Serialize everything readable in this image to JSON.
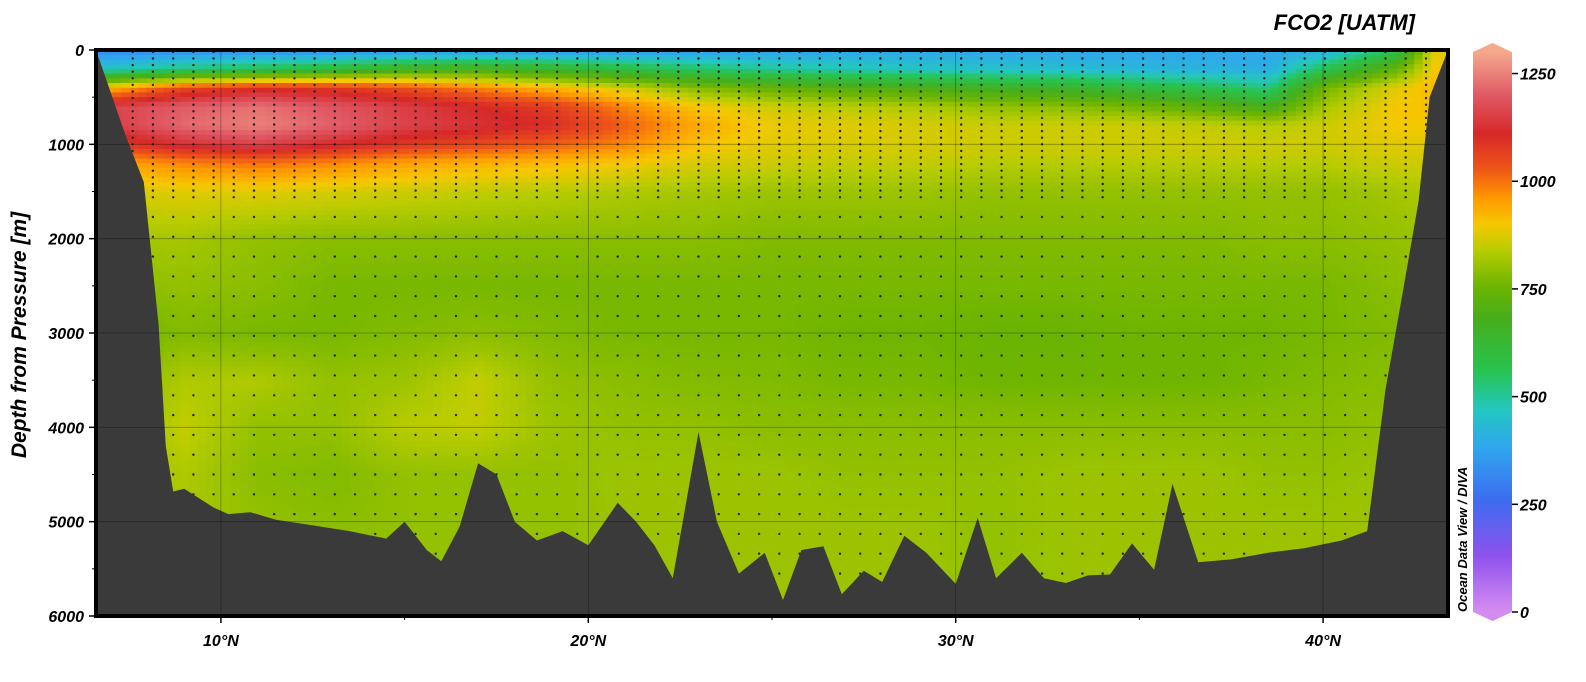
{
  "chart_data": {
    "type": "heatmap",
    "title": "FCO2 [UATM]",
    "ylabel": "Depth from Pressure [m]",
    "xlabel": "",
    "credit": "Ocean Data View / DIVA",
    "xlim": [
      6.6,
      43.4
    ],
    "ylim": [
      6000,
      0
    ],
    "x_ticks": [
      10,
      20,
      30,
      40
    ],
    "x_tick_labels": [
      "10°N",
      "20°N",
      "30°N",
      "40°N"
    ],
    "y_ticks": [
      0,
      1000,
      2000,
      3000,
      4000,
      5000,
      6000
    ],
    "y_tick_labels": [
      "0",
      "1000",
      "2000",
      "3000",
      "4000",
      "5000",
      "6000"
    ],
    "grid": true,
    "colorbar": {
      "range": [
        0,
        1300
      ],
      "ticks": [
        0,
        250,
        500,
        750,
        1000,
        1250
      ],
      "tick_labels": [
        "0",
        "250",
        "500",
        "750",
        "1000",
        "1250"
      ],
      "stops": [
        {
          "value": 0,
          "color": "#d58cf0"
        },
        {
          "value": 130,
          "color": "#8f52ee"
        },
        {
          "value": 260,
          "color": "#3c6cf0"
        },
        {
          "value": 380,
          "color": "#2fa6ee"
        },
        {
          "value": 470,
          "color": "#23c7c0"
        },
        {
          "value": 560,
          "color": "#27c350"
        },
        {
          "value": 680,
          "color": "#46ae1c"
        },
        {
          "value": 760,
          "color": "#6fb500"
        },
        {
          "value": 840,
          "color": "#b8cc00"
        },
        {
          "value": 900,
          "color": "#f5c800"
        },
        {
          "value": 960,
          "color": "#ff9900"
        },
        {
          "value": 1030,
          "color": "#ee5418"
        },
        {
          "value": 1110,
          "color": "#d62828"
        },
        {
          "value": 1200,
          "color": "#e05a66"
        },
        {
          "value": 1300,
          "color": "#f5a88c"
        }
      ]
    },
    "grid_lat": [
      7,
      9,
      11,
      13,
      15,
      17,
      19,
      21,
      23,
      25,
      27,
      29,
      31,
      33,
      35,
      37,
      38.5,
      40,
      42,
      43
    ],
    "grid_depth": [
      0,
      200,
      400,
      600,
      800,
      1000,
      1200,
      1500,
      2000,
      2500,
      3000,
      3500,
      4000,
      4500,
      5000,
      6000
    ],
    "values": [
      [
        320,
        460,
        920,
        1160,
        1150,
        1070,
        940,
        870,
        820,
        790,
        760,
        770,
        790,
        800,
        810,
        810
      ],
      [
        330,
        520,
        1050,
        1200,
        1220,
        1130,
        980,
        880,
        820,
        800,
        780,
        830,
        850,
        830,
        820,
        820
      ],
      [
        330,
        560,
        1090,
        1230,
        1250,
        1160,
        1000,
        880,
        800,
        790,
        770,
        830,
        800,
        790,
        800,
        800
      ],
      [
        330,
        600,
        1080,
        1190,
        1210,
        1120,
        980,
        870,
        790,
        770,
        770,
        800,
        800,
        780,
        790,
        790
      ],
      [
        340,
        660,
        1040,
        1150,
        1160,
        1080,
        950,
        860,
        790,
        770,
        780,
        810,
        840,
        800,
        800,
        800
      ],
      [
        340,
        680,
        980,
        1110,
        1130,
        1050,
        930,
        850,
        790,
        770,
        790,
        850,
        850,
        800,
        800,
        800
      ],
      [
        340,
        640,
        920,
        1070,
        1100,
        1020,
        920,
        840,
        790,
        770,
        780,
        800,
        810,
        800,
        800,
        800
      ],
      [
        350,
        590,
        860,
        980,
        1020,
        980,
        900,
        830,
        790,
        770,
        770,
        790,
        800,
        810,
        810,
        810
      ],
      [
        360,
        540,
        780,
        900,
        940,
        910,
        870,
        820,
        790,
        770,
        770,
        780,
        800,
        810,
        810,
        810
      ],
      [
        370,
        500,
        740,
        860,
        890,
        880,
        860,
        810,
        780,
        770,
        770,
        780,
        790,
        810,
        810,
        810
      ],
      [
        380,
        480,
        710,
        840,
        880,
        870,
        850,
        810,
        780,
        770,
        760,
        770,
        790,
        800,
        810,
        810
      ],
      [
        380,
        460,
        690,
        830,
        870,
        870,
        850,
        810,
        780,
        770,
        760,
        770,
        790,
        800,
        810,
        810
      ],
      [
        380,
        450,
        660,
        800,
        860,
        860,
        840,
        800,
        780,
        770,
        750,
        760,
        790,
        800,
        800,
        800
      ],
      [
        380,
        440,
        640,
        790,
        860,
        860,
        840,
        800,
        780,
        770,
        750,
        760,
        790,
        810,
        810,
        810
      ],
      [
        380,
        420,
        600,
        760,
        860,
        860,
        840,
        800,
        780,
        770,
        760,
        760,
        790,
        810,
        810,
        810
      ],
      [
        380,
        410,
        560,
        720,
        850,
        860,
        840,
        800,
        780,
        770,
        760,
        760,
        790,
        810,
        810,
        810
      ],
      [
        380,
        400,
        520,
        680,
        840,
        860,
        840,
        800,
        790,
        770,
        760,
        770,
        790,
        800,
        810,
        810
      ],
      [
        400,
        560,
        760,
        820,
        860,
        860,
        840,
        800,
        790,
        770,
        770,
        780,
        790,
        800,
        810,
        810
      ],
      [
        560,
        740,
        880,
        900,
        900,
        880,
        860,
        820,
        800,
        790,
        780,
        790,
        800,
        810,
        810,
        810
      ],
      [
        880,
        900,
        920,
        910,
        900,
        880,
        860,
        830,
        810,
        800,
        790,
        800,
        810,
        820,
        820,
        820
      ]
    ],
    "seafloor": [
      [
        6.6,
        0
      ],
      [
        7.4,
        900
      ],
      [
        7.9,
        1400
      ],
      [
        8.3,
        2900
      ],
      [
        8.5,
        4200
      ],
      [
        8.7,
        4680
      ],
      [
        9.0,
        4650
      ],
      [
        9.4,
        4750
      ],
      [
        9.8,
        4850
      ],
      [
        10.2,
        4920
      ],
      [
        10.8,
        4900
      ],
      [
        11.5,
        4980
      ],
      [
        12.5,
        5040
      ],
      [
        13.5,
        5100
      ],
      [
        14.5,
        5180
      ],
      [
        15.0,
        5000
      ],
      [
        15.6,
        5300
      ],
      [
        16.0,
        5420
      ],
      [
        16.5,
        5050
      ],
      [
        17.0,
        4380
      ],
      [
        17.5,
        4500
      ],
      [
        18.0,
        5000
      ],
      [
        18.6,
        5200
      ],
      [
        19.3,
        5100
      ],
      [
        20.0,
        5250
      ],
      [
        20.8,
        4800
      ],
      [
        21.3,
        5000
      ],
      [
        21.8,
        5250
      ],
      [
        22.3,
        5600
      ],
      [
        23.0,
        4050
      ],
      [
        23.5,
        5000
      ],
      [
        24.1,
        5550
      ],
      [
        24.8,
        5330
      ],
      [
        25.3,
        5830
      ],
      [
        25.8,
        5300
      ],
      [
        26.4,
        5260
      ],
      [
        26.9,
        5770
      ],
      [
        27.5,
        5520
      ],
      [
        28.0,
        5640
      ],
      [
        28.6,
        5150
      ],
      [
        29.2,
        5330
      ],
      [
        30.0,
        5660
      ],
      [
        30.6,
        4960
      ],
      [
        31.1,
        5600
      ],
      [
        31.8,
        5330
      ],
      [
        32.4,
        5600
      ],
      [
        33.0,
        5650
      ],
      [
        33.6,
        5570
      ],
      [
        34.2,
        5560
      ],
      [
        34.8,
        5230
      ],
      [
        35.4,
        5510
      ],
      [
        35.9,
        4600
      ],
      [
        36.6,
        5430
      ],
      [
        37.5,
        5400
      ],
      [
        38.5,
        5330
      ],
      [
        39.5,
        5280
      ],
      [
        40.5,
        5200
      ],
      [
        41.2,
        5100
      ],
      [
        41.7,
        3600
      ],
      [
        42.2,
        2500
      ],
      [
        42.6,
        1600
      ],
      [
        42.9,
        500
      ],
      [
        43.4,
        0
      ]
    ]
  }
}
